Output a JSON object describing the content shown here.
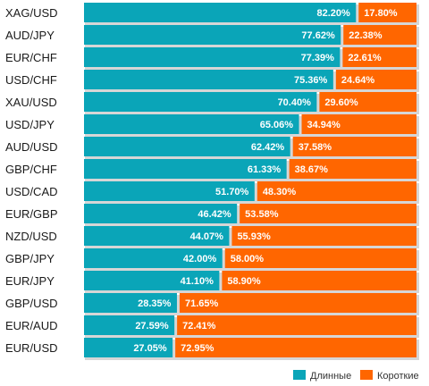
{
  "chart_data": {
    "type": "bar",
    "orientation": "horizontal",
    "stacked": true,
    "percent_stacked": true,
    "categories": [
      "XAG/USD",
      "AUD/JPY",
      "EUR/CHF",
      "USD/CHF",
      "XAU/USD",
      "USD/JPY",
      "AUD/USD",
      "GBP/CHF",
      "USD/CAD",
      "EUR/GBP",
      "NZD/USD",
      "GBP/JPY",
      "EUR/JPY",
      "GBP/USD",
      "EUR/AUD",
      "EUR/USD"
    ],
    "series": [
      {
        "name": "Длинные",
        "color": "#0aa5b8",
        "values": [
          82.2,
          77.62,
          77.39,
          75.36,
          70.4,
          65.06,
          62.42,
          61.33,
          51.7,
          46.42,
          44.07,
          42.0,
          41.1,
          28.35,
          27.59,
          27.05
        ],
        "labels": [
          "82.20%",
          "77.62%",
          "77.39%",
          "75.36%",
          "70.40%",
          "65.06%",
          "62.42%",
          "61.33%",
          "51.70%",
          "46.42%",
          "44.07%",
          "42.00%",
          "41.10%",
          "28.35%",
          "27.59%",
          "27.05%"
        ]
      },
      {
        "name": "Короткие",
        "color": "#ff6600",
        "values": [
          17.8,
          22.38,
          22.61,
          24.64,
          29.6,
          34.94,
          37.58,
          38.67,
          48.3,
          53.58,
          55.93,
          58.0,
          58.9,
          71.65,
          72.41,
          72.95
        ],
        "labels": [
          "17.80%",
          "22.38%",
          "22.61%",
          "24.64%",
          "29.60%",
          "34.94%",
          "37.58%",
          "38.67%",
          "48.30%",
          "53.58%",
          "55.93%",
          "58.00%",
          "58.90%",
          "71.65%",
          "72.41%",
          "72.95%"
        ]
      }
    ],
    "xlim": [
      0,
      100
    ],
    "title": "",
    "xlabel": "",
    "ylabel": "",
    "legend": {
      "placement": "bottom-right",
      "entries": [
        "Длинные",
        "Короткие"
      ]
    },
    "grid": false
  }
}
